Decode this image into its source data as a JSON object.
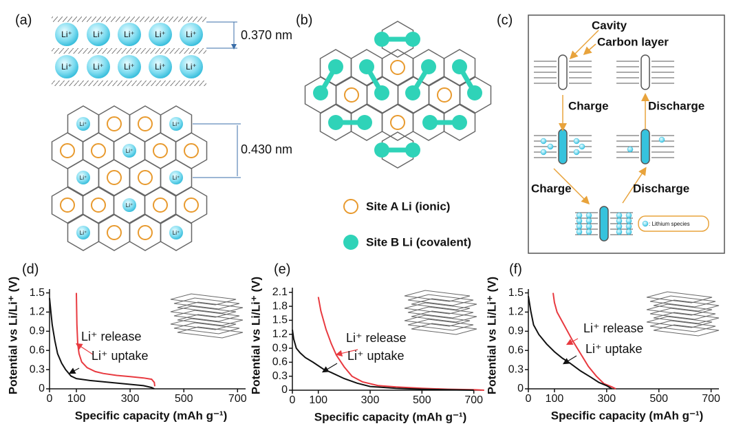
{
  "panel_a": {
    "label": "(a)",
    "ion": "Li⁺",
    "spacing_top": "0.370 nm",
    "spacing_bottom": "0.430 nm"
  },
  "panel_b": {
    "label": "(b)",
    "legend": [
      "Site A Li (ionic)",
      "Site B Li (covalent)"
    ]
  },
  "panel_c": {
    "label": "(c)",
    "cavity": "Cavity",
    "carbon_layer": "Carbon layer",
    "charge": "Charge",
    "discharge": "Discharge",
    "legend": ": Lithium species"
  },
  "chart_data": [
    {
      "type": "line",
      "label": "(d)",
      "xlabel": "Specific capacity (mAh g⁻¹)",
      "ylabel": "Potential vs Li/Li⁺ (V)",
      "xlim": [
        0,
        730
      ],
      "xticks": [
        0,
        100,
        300,
        500,
        700
      ],
      "ylim": [
        0,
        1.56
      ],
      "yticks": [
        0,
        0.3,
        0.6,
        0.9,
        1.2,
        1.5
      ],
      "series": [
        {
          "name": "Li⁺ release",
          "color": "#e8393f",
          "x": [
            100,
            102,
            105,
            110,
            120,
            140,
            170,
            200,
            250,
            300,
            350,
            380,
            390,
            392
          ],
          "values": [
            1.5,
            1.0,
            0.7,
            0.55,
            0.42,
            0.33,
            0.27,
            0.24,
            0.21,
            0.19,
            0.17,
            0.15,
            0.1,
            0.04
          ]
        },
        {
          "name": "Li⁺ uptake",
          "color": "#111111",
          "x": [
            0,
            5,
            10,
            20,
            30,
            45,
            60,
            80,
            100,
            150,
            200,
            250,
            300,
            350,
            380,
            390
          ],
          "values": [
            1.42,
            1.2,
            1.0,
            0.75,
            0.55,
            0.4,
            0.3,
            0.2,
            0.16,
            0.13,
            0.11,
            0.09,
            0.07,
            0.05,
            0.02,
            0.0
          ]
        }
      ]
    },
    {
      "type": "line",
      "label": "(e)",
      "xlabel": "Specific capacity (mAh g⁻¹)",
      "ylabel": "Potential vs Li/Li⁺ (V)",
      "xlim": [
        0,
        730
      ],
      "xticks": [
        0,
        100,
        300,
        500,
        700
      ],
      "ylim": [
        0,
        2.2
      ],
      "yticks": [
        0,
        0.3,
        0.6,
        0.9,
        1.2,
        1.5,
        1.8,
        2.1
      ],
      "series": [
        {
          "name": "Li⁺ release",
          "color": "#e8393f",
          "x": [
            100,
            110,
            130,
            150,
            170,
            200,
            230,
            270,
            330,
            400,
            500,
            600,
            700,
            740
          ],
          "values": [
            2.0,
            1.7,
            1.3,
            1.0,
            0.75,
            0.5,
            0.3,
            0.18,
            0.1,
            0.07,
            0.04,
            0.02,
            0.01,
            0.0
          ]
        },
        {
          "name": "Li⁺ uptake",
          "color": "#111111",
          "x": [
            0,
            5,
            15,
            30,
            50,
            80,
            120,
            150,
            200,
            250,
            300,
            400,
            500,
            600,
            700
          ],
          "values": [
            1.3,
            1.1,
            0.9,
            0.8,
            0.7,
            0.6,
            0.45,
            0.38,
            0.25,
            0.15,
            0.08,
            0.04,
            0.02,
            0.01,
            0.0
          ]
        }
      ]
    },
    {
      "type": "line",
      "label": "(f)",
      "xlabel": "Specific capacity (mAh g⁻¹)",
      "ylabel": "Potential vs Li/Li⁺ (V)",
      "xlim": [
        0,
        730
      ],
      "xticks": [
        0,
        100,
        300,
        500,
        700
      ],
      "ylim": [
        0,
        1.56
      ],
      "yticks": [
        0,
        0.3,
        0.6,
        0.9,
        1.2,
        1.5
      ],
      "series": [
        {
          "name": "Li⁺ release",
          "color": "#e8393f",
          "x": [
            95,
            100,
            110,
            130,
            150,
            170,
            200,
            230,
            260,
            290,
            320,
            335
          ],
          "values": [
            1.5,
            1.35,
            1.2,
            1.05,
            0.9,
            0.75,
            0.55,
            0.35,
            0.2,
            0.08,
            0.03,
            0.0
          ]
        },
        {
          "name": "Li⁺ uptake",
          "color": "#111111",
          "x": [
            0,
            10,
            20,
            40,
            70,
            100,
            130,
            160,
            200,
            240,
            270,
            300,
            320
          ],
          "values": [
            1.45,
            1.2,
            1.0,
            0.85,
            0.7,
            0.58,
            0.48,
            0.4,
            0.28,
            0.18,
            0.1,
            0.05,
            0.0
          ]
        }
      ]
    }
  ]
}
